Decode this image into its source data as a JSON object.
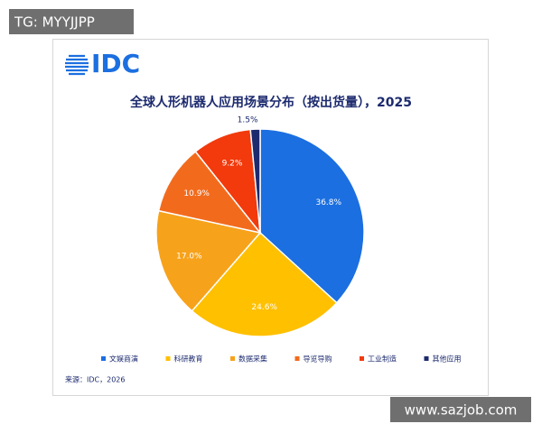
{
  "watermark_top": "TG: MYYJJPP",
  "watermark_bottom": "www.sazjob.com",
  "logo": "IDC",
  "chart_data": {
    "type": "pie",
    "title": "全球人形机器人应用场景分布（按出货量），2025",
    "categories": [
      "文娱商演",
      "科研教育",
      "数据采集",
      "导览导购",
      "工业制造",
      "其他应用"
    ],
    "values": [
      36.8,
      24.6,
      17.0,
      10.9,
      9.2,
      1.5
    ],
    "value_labels": [
      "36.8%",
      "24.6%",
      "17.0%",
      "10.9%",
      "9.2%",
      "1.5%"
    ],
    "colors": [
      "#1b6fe0",
      "#ffc000",
      "#f7a21b",
      "#f26b1d",
      "#f23a0c",
      "#1c2a6e"
    ],
    "legend": "bottom",
    "source": "来源：IDC，2026"
  }
}
